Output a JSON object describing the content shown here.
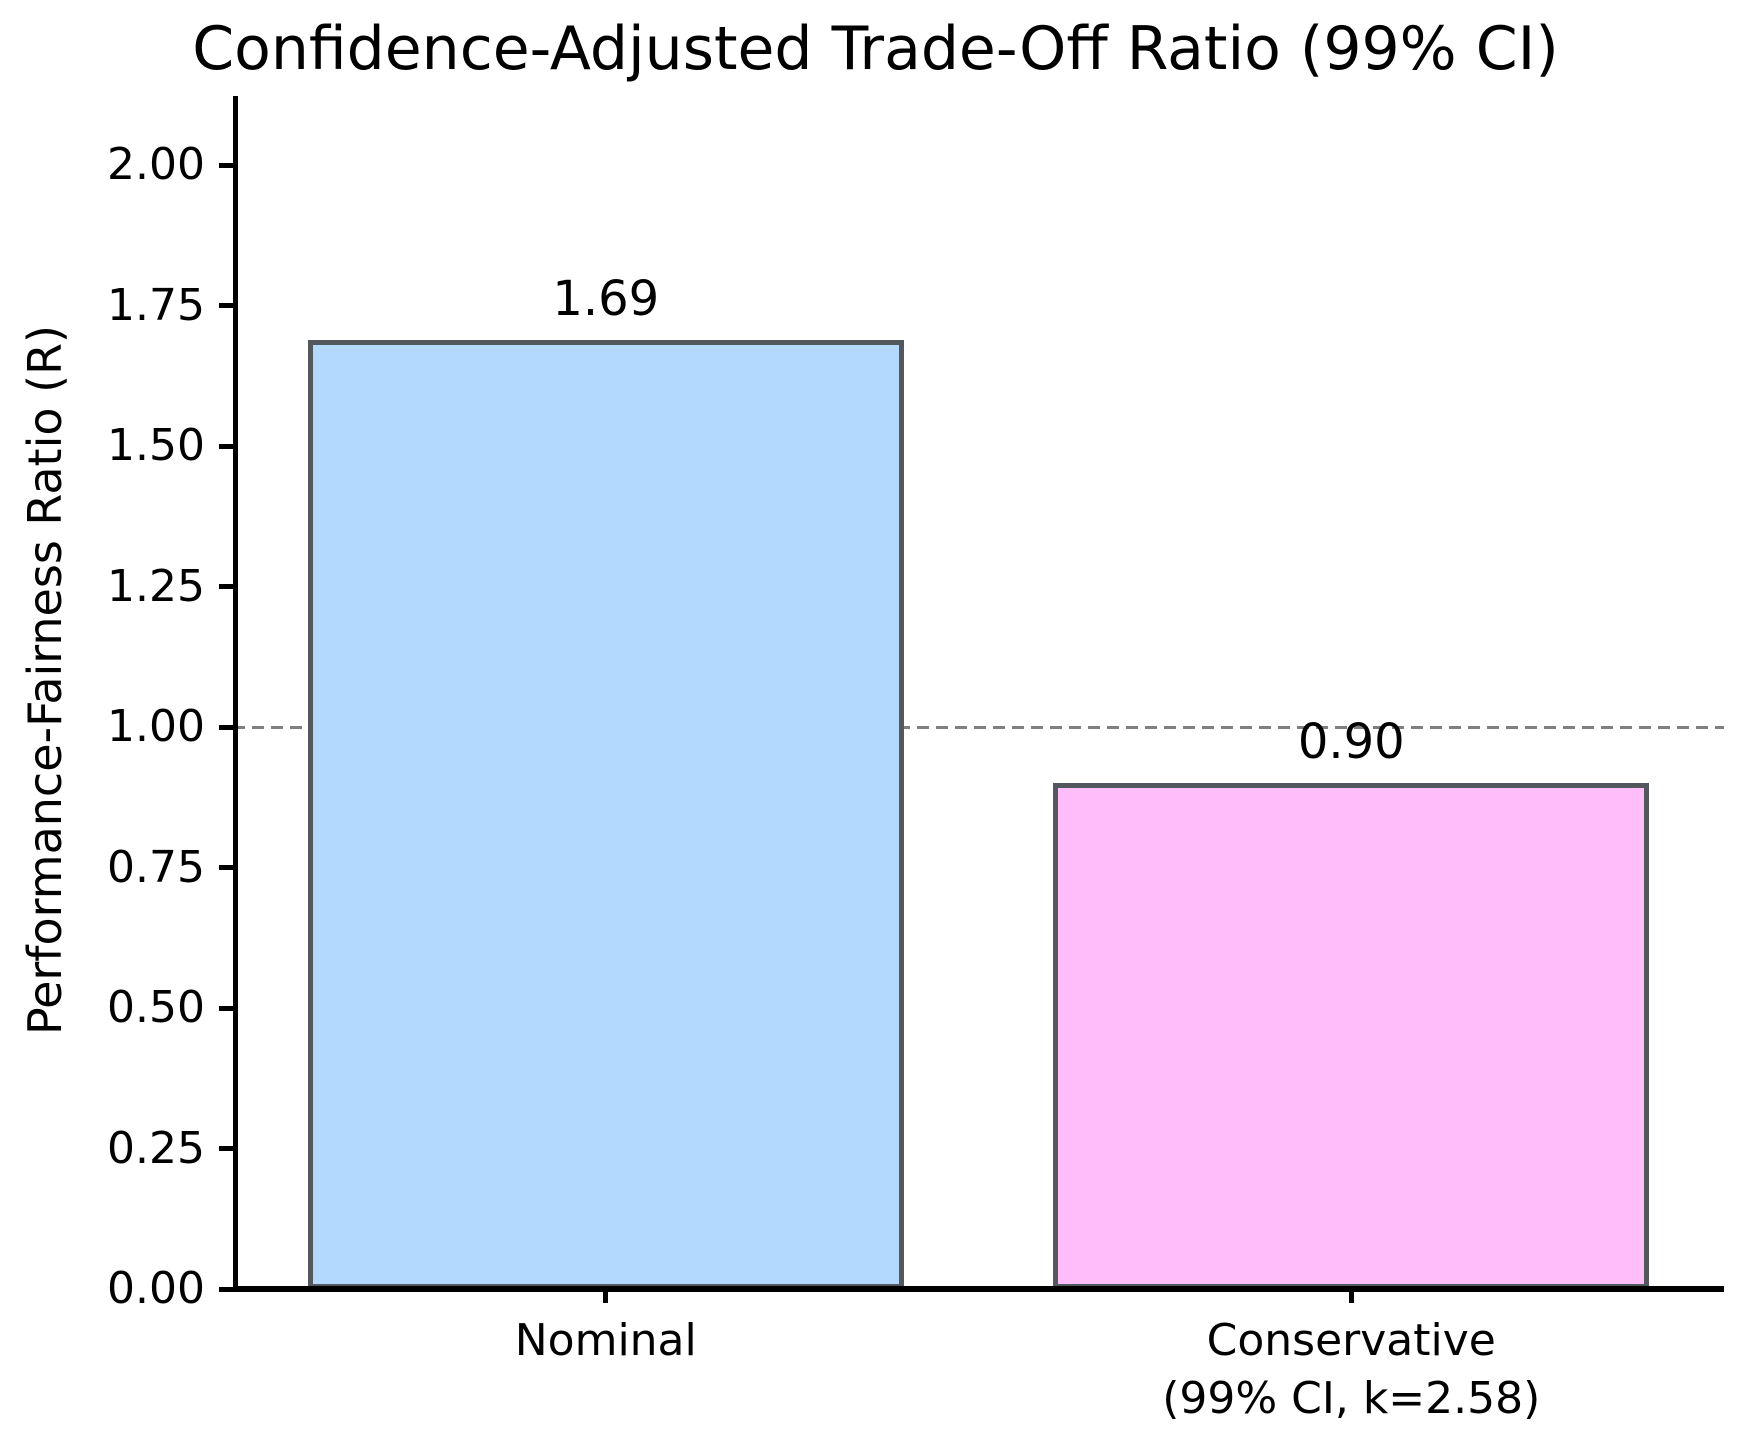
{
  "figure": {
    "title": "Confidence-Adjusted Trade-Off Ratio (99% CI)",
    "ylabel": "Performance-Fairness Ratio (R)"
  },
  "colors": {
    "background": "#FFFFFF",
    "axis": "#000000",
    "text": "#000000",
    "bar_edge": "#53585E",
    "reference_line": "#7F7F7F",
    "nominal_bar_fill": "#B3D9FF",
    "conservative_bar_fill": "#FFBDFA"
  },
  "chart_data": {
    "type": "bar",
    "title": "Confidence-Adjusted Trade-Off Ratio (99% CI)",
    "ylabel": "Performance-Fairness Ratio (R)",
    "xlabel": "",
    "categories": [
      "Nominal",
      "Conservative\n(99% CI, k=2.58)"
    ],
    "values": [
      1.69,
      0.9
    ],
    "bar_value_labels": [
      "1.69",
      "0.90"
    ],
    "bar_colors": [
      "#B3D9FF",
      "#FFBDFA"
    ],
    "bar_names": [
      "nominal",
      "conservative"
    ],
    "yticks": [
      0.0,
      0.25,
      0.5,
      0.75,
      1.0,
      1.25,
      1.5,
      1.75,
      2.0
    ],
    "ytick_labels": [
      "0.00",
      "0.25",
      "0.50",
      "0.75",
      "1.00",
      "1.25",
      "1.50",
      "1.75",
      "2.00"
    ],
    "ylim": [
      0,
      2.12
    ],
    "reference_line_y": 1.0,
    "bar_width_fraction": 0.8,
    "grid": false,
    "legend": null,
    "spines": [
      "left",
      "bottom"
    ]
  }
}
